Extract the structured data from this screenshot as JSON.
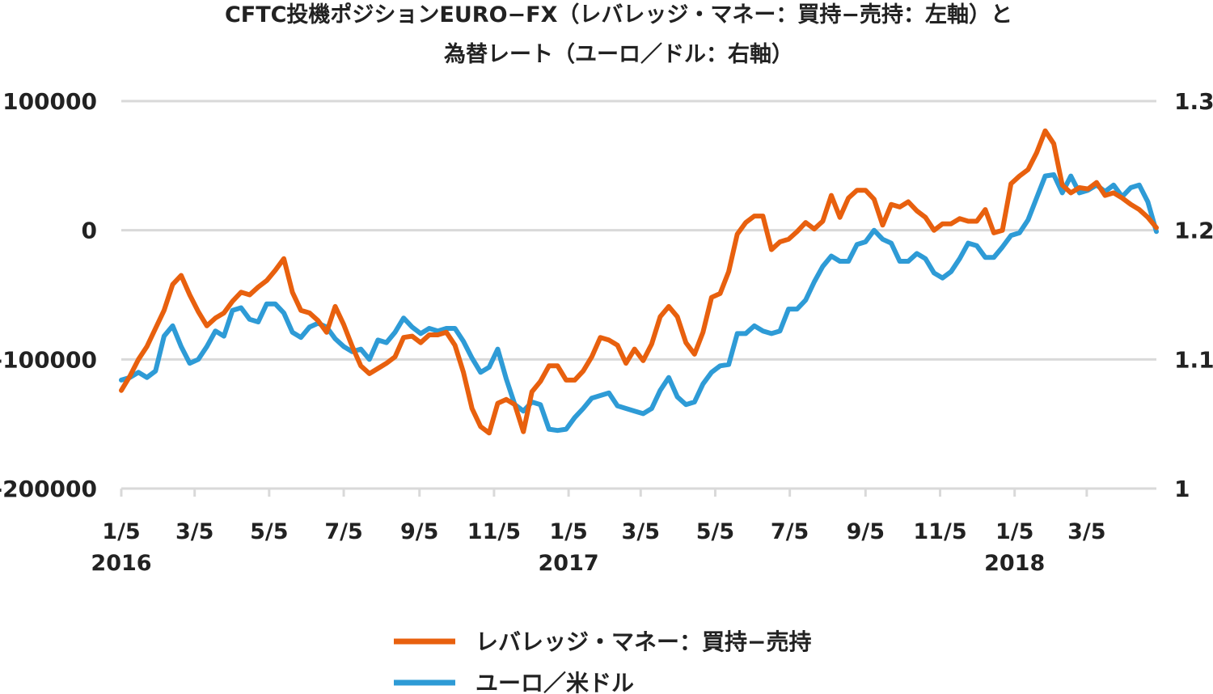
{
  "chart_data": {
    "type": "line",
    "title_lines": [
      "CFTC投機ポジションEURO−FX（レバレッジ・マネー：買持−売持：左軸）と",
      "為替レート（ユーロ／ドル：右軸）"
    ],
    "left_axis": {
      "ylim": [
        -200000,
        100000
      ],
      "ticks": [
        100000,
        0,
        -100000,
        -200000
      ],
      "tick_labels": [
        "100000",
        "0",
        "-100000",
        "-200000"
      ]
    },
    "right_axis": {
      "ylim": [
        1.0,
        1.3
      ],
      "ticks": [
        1.3,
        1.2,
        1.1,
        1.0
      ],
      "tick_labels": [
        "1.3",
        "1.2",
        "1.1",
        "1"
      ]
    },
    "x_range": [
      "2016-01-05",
      "2018-05-01"
    ],
    "x_ticks": [
      {
        "date": "2016-01-05",
        "label": "1/5",
        "year": "2016"
      },
      {
        "date": "2016-03-05",
        "label": "3/5",
        "year": ""
      },
      {
        "date": "2016-05-05",
        "label": "5/5",
        "year": ""
      },
      {
        "date": "2016-07-05",
        "label": "7/5",
        "year": ""
      },
      {
        "date": "2016-09-05",
        "label": "9/5",
        "year": ""
      },
      {
        "date": "2016-11-05",
        "label": "11/5",
        "year": ""
      },
      {
        "date": "2017-01-05",
        "label": "1/5",
        "year": "2017"
      },
      {
        "date": "2017-03-05",
        "label": "3/5",
        "year": ""
      },
      {
        "date": "2017-05-05",
        "label": "5/5",
        "year": ""
      },
      {
        "date": "2017-07-05",
        "label": "7/5",
        "year": ""
      },
      {
        "date": "2017-09-05",
        "label": "9/5",
        "year": ""
      },
      {
        "date": "2017-11-05",
        "label": "11/5",
        "year": ""
      },
      {
        "date": "2018-01-05",
        "label": "1/5",
        "year": "2018"
      },
      {
        "date": "2018-03-05",
        "label": "3/5",
        "year": ""
      }
    ],
    "grid": true,
    "legend_position": "bottom",
    "series": [
      {
        "name": "レバレッジ・マネー：買持−売持",
        "axis": "left",
        "color": "#e8600e",
        "points": [
          [
            "2016-01-05",
            -124000
          ],
          [
            "2016-01-12",
            -113000
          ],
          [
            "2016-01-19",
            -100000
          ],
          [
            "2016-01-26",
            -90000
          ],
          [
            "2016-02-02",
            -76000
          ],
          [
            "2016-02-09",
            -62000
          ],
          [
            "2016-02-16",
            -42000
          ],
          [
            "2016-02-23",
            -35000
          ],
          [
            "2016-03-01",
            -50000
          ],
          [
            "2016-03-08",
            -63000
          ],
          [
            "2016-03-15",
            -74000
          ],
          [
            "2016-03-22",
            -68000
          ],
          [
            "2016-03-29",
            -64000
          ],
          [
            "2016-04-05",
            -55000
          ],
          [
            "2016-04-12",
            -48000
          ],
          [
            "2016-04-19",
            -50000
          ],
          [
            "2016-04-26",
            -44000
          ],
          [
            "2016-05-03",
            -39000
          ],
          [
            "2016-05-10",
            -31000
          ],
          [
            "2016-05-17",
            -22000
          ],
          [
            "2016-05-24",
            -48000
          ],
          [
            "2016-05-31",
            -62000
          ],
          [
            "2016-06-07",
            -64000
          ],
          [
            "2016-06-14",
            -70000
          ],
          [
            "2016-06-21",
            -79000
          ],
          [
            "2016-06-28",
            -59000
          ],
          [
            "2016-07-05",
            -73000
          ],
          [
            "2016-07-12",
            -90000
          ],
          [
            "2016-07-19",
            -105000
          ],
          [
            "2016-07-26",
            -111000
          ],
          [
            "2016-08-02",
            -107000
          ],
          [
            "2016-08-09",
            -103000
          ],
          [
            "2016-08-16",
            -98000
          ],
          [
            "2016-08-23",
            -83000
          ],
          [
            "2016-08-30",
            -82000
          ],
          [
            "2016-09-06",
            -87000
          ],
          [
            "2016-09-13",
            -81000
          ],
          [
            "2016-09-20",
            -81000
          ],
          [
            "2016-09-27",
            -79000
          ],
          [
            "2016-10-04",
            -89000
          ],
          [
            "2016-10-11",
            -110000
          ],
          [
            "2016-10-18",
            -138000
          ],
          [
            "2016-10-25",
            -152000
          ],
          [
            "2016-11-01",
            -157000
          ],
          [
            "2016-11-08",
            -134000
          ],
          [
            "2016-11-15",
            -131000
          ],
          [
            "2016-11-22",
            -135000
          ],
          [
            "2016-11-29",
            -156000
          ],
          [
            "2016-12-06",
            -125000
          ],
          [
            "2016-12-13",
            -117000
          ],
          [
            "2016-12-20",
            -105000
          ],
          [
            "2016-12-27",
            -105000
          ],
          [
            "2017-01-03",
            -116000
          ],
          [
            "2017-01-10",
            -116000
          ],
          [
            "2017-01-17",
            -109000
          ],
          [
            "2017-01-24",
            -98000
          ],
          [
            "2017-01-31",
            -83000
          ],
          [
            "2017-02-07",
            -85000
          ],
          [
            "2017-02-14",
            -89000
          ],
          [
            "2017-02-21",
            -103000
          ],
          [
            "2017-02-28",
            -92000
          ],
          [
            "2017-03-07",
            -101000
          ],
          [
            "2017-03-14",
            -88000
          ],
          [
            "2017-03-21",
            -67000
          ],
          [
            "2017-03-28",
            -59000
          ],
          [
            "2017-04-04",
            -67000
          ],
          [
            "2017-04-11",
            -87000
          ],
          [
            "2017-04-18",
            -96000
          ],
          [
            "2017-04-25",
            -79000
          ],
          [
            "2017-05-02",
            -52000
          ],
          [
            "2017-05-09",
            -49000
          ],
          [
            "2017-05-16",
            -32000
          ],
          [
            "2017-05-23",
            -3000
          ],
          [
            "2017-05-30",
            6000
          ],
          [
            "2017-06-06",
            11000
          ],
          [
            "2017-06-13",
            11000
          ],
          [
            "2017-06-20",
            -15000
          ],
          [
            "2017-06-27",
            -9000
          ],
          [
            "2017-07-04",
            -7000
          ],
          [
            "2017-07-11",
            -1000
          ],
          [
            "2017-07-18",
            6000
          ],
          [
            "2017-07-25",
            1000
          ],
          [
            "2017-08-01",
            7000
          ],
          [
            "2017-08-08",
            27000
          ],
          [
            "2017-08-15",
            10000
          ],
          [
            "2017-08-22",
            25000
          ],
          [
            "2017-08-29",
            31000
          ],
          [
            "2017-09-05",
            31000
          ],
          [
            "2017-09-12",
            24000
          ],
          [
            "2017-09-19",
            4000
          ],
          [
            "2017-09-26",
            20000
          ],
          [
            "2017-10-03",
            18000
          ],
          [
            "2017-10-10",
            22000
          ],
          [
            "2017-10-17",
            15000
          ],
          [
            "2017-10-24",
            10000
          ],
          [
            "2017-10-31",
            0
          ],
          [
            "2017-11-07",
            5000
          ],
          [
            "2017-11-14",
            5000
          ],
          [
            "2017-11-21",
            9000
          ],
          [
            "2017-11-28",
            7000
          ],
          [
            "2017-12-05",
            7000
          ],
          [
            "2017-12-12",
            16000
          ],
          [
            "2017-12-19",
            -2000
          ],
          [
            "2017-12-26",
            0
          ],
          [
            "2018-01-02",
            36000
          ],
          [
            "2018-01-09",
            42000
          ],
          [
            "2018-01-16",
            47000
          ],
          [
            "2018-01-23",
            60000
          ],
          [
            "2018-01-30",
            77000
          ],
          [
            "2018-02-06",
            67000
          ],
          [
            "2018-02-13",
            35000
          ],
          [
            "2018-02-20",
            29000
          ],
          [
            "2018-02-27",
            33000
          ],
          [
            "2018-03-06",
            32000
          ],
          [
            "2018-03-13",
            37000
          ],
          [
            "2018-03-20",
            27000
          ],
          [
            "2018-03-27",
            29000
          ],
          [
            "2018-04-03",
            25000
          ],
          [
            "2018-04-10",
            20000
          ],
          [
            "2018-04-17",
            16000
          ],
          [
            "2018-04-24",
            10000
          ],
          [
            "2018-05-01",
            2000
          ]
        ]
      },
      {
        "name": "ユーロ／米ドル",
        "axis": "right",
        "color": "#2e9bd6",
        "points": [
          [
            "2016-01-05",
            1.084
          ],
          [
            "2016-01-12",
            1.086
          ],
          [
            "2016-01-19",
            1.09
          ],
          [
            "2016-01-26",
            1.086
          ],
          [
            "2016-02-02",
            1.091
          ],
          [
            "2016-02-09",
            1.118
          ],
          [
            "2016-02-16",
            1.126
          ],
          [
            "2016-02-23",
            1.11
          ],
          [
            "2016-03-01",
            1.097
          ],
          [
            "2016-03-08",
            1.1
          ],
          [
            "2016-03-15",
            1.11
          ],
          [
            "2016-03-22",
            1.122
          ],
          [
            "2016-03-29",
            1.118
          ],
          [
            "2016-04-05",
            1.138
          ],
          [
            "2016-04-12",
            1.14
          ],
          [
            "2016-04-19",
            1.131
          ],
          [
            "2016-04-26",
            1.129
          ],
          [
            "2016-05-03",
            1.143
          ],
          [
            "2016-05-10",
            1.143
          ],
          [
            "2016-05-17",
            1.136
          ],
          [
            "2016-05-24",
            1.121
          ],
          [
            "2016-05-31",
            1.117
          ],
          [
            "2016-06-07",
            1.125
          ],
          [
            "2016-06-14",
            1.128
          ],
          [
            "2016-06-21",
            1.125
          ],
          [
            "2016-06-28",
            1.116
          ],
          [
            "2016-07-05",
            1.11
          ],
          [
            "2016-07-12",
            1.106
          ],
          [
            "2016-07-19",
            1.108
          ],
          [
            "2016-07-26",
            1.1
          ],
          [
            "2016-08-02",
            1.115
          ],
          [
            "2016-08-09",
            1.113
          ],
          [
            "2016-08-16",
            1.121
          ],
          [
            "2016-08-23",
            1.132
          ],
          [
            "2016-08-30",
            1.125
          ],
          [
            "2016-09-06",
            1.12
          ],
          [
            "2016-09-13",
            1.124
          ],
          [
            "2016-09-20",
            1.122
          ],
          [
            "2016-09-27",
            1.124
          ],
          [
            "2016-10-04",
            1.124
          ],
          [
            "2016-10-11",
            1.114
          ],
          [
            "2016-10-18",
            1.101
          ],
          [
            "2016-10-25",
            1.09
          ],
          [
            "2016-11-01",
            1.094
          ],
          [
            "2016-11-08",
            1.108
          ],
          [
            "2016-11-15",
            1.085
          ],
          [
            "2016-11-22",
            1.065
          ],
          [
            "2016-11-29",
            1.06
          ],
          [
            "2016-12-06",
            1.067
          ],
          [
            "2016-12-13",
            1.065
          ],
          [
            "2016-12-20",
            1.046
          ],
          [
            "2016-12-27",
            1.045
          ],
          [
            "2017-01-03",
            1.046
          ],
          [
            "2017-01-10",
            1.055
          ],
          [
            "2017-01-17",
            1.062
          ],
          [
            "2017-01-24",
            1.07
          ],
          [
            "2017-01-31",
            1.072
          ],
          [
            "2017-02-07",
            1.074
          ],
          [
            "2017-02-14",
            1.064
          ],
          [
            "2017-02-21",
            1.062
          ],
          [
            "2017-02-28",
            1.06
          ],
          [
            "2017-03-07",
            1.058
          ],
          [
            "2017-03-14",
            1.062
          ],
          [
            "2017-03-21",
            1.076
          ],
          [
            "2017-03-28",
            1.086
          ],
          [
            "2017-04-04",
            1.071
          ],
          [
            "2017-04-11",
            1.065
          ],
          [
            "2017-04-18",
            1.067
          ],
          [
            "2017-04-25",
            1.081
          ],
          [
            "2017-05-02",
            1.09
          ],
          [
            "2017-05-09",
            1.095
          ],
          [
            "2017-05-16",
            1.096
          ],
          [
            "2017-05-23",
            1.12
          ],
          [
            "2017-05-30",
            1.12
          ],
          [
            "2017-06-06",
            1.126
          ],
          [
            "2017-06-13",
            1.122
          ],
          [
            "2017-06-20",
            1.12
          ],
          [
            "2017-06-27",
            1.122
          ],
          [
            "2017-07-04",
            1.139
          ],
          [
            "2017-07-11",
            1.139
          ],
          [
            "2017-07-18",
            1.146
          ],
          [
            "2017-07-25",
            1.16
          ],
          [
            "2017-08-01",
            1.172
          ],
          [
            "2017-08-08",
            1.18
          ],
          [
            "2017-08-15",
            1.176
          ],
          [
            "2017-08-22",
            1.176
          ],
          [
            "2017-08-29",
            1.189
          ],
          [
            "2017-09-05",
            1.191
          ],
          [
            "2017-09-12",
            1.2
          ],
          [
            "2017-09-19",
            1.193
          ],
          [
            "2017-09-26",
            1.19
          ],
          [
            "2017-10-03",
            1.176
          ],
          [
            "2017-10-10",
            1.176
          ],
          [
            "2017-10-17",
            1.182
          ],
          [
            "2017-10-24",
            1.178
          ],
          [
            "2017-10-31",
            1.167
          ],
          [
            "2017-11-07",
            1.163
          ],
          [
            "2017-11-14",
            1.168
          ],
          [
            "2017-11-21",
            1.178
          ],
          [
            "2017-11-28",
            1.19
          ],
          [
            "2017-12-05",
            1.188
          ],
          [
            "2017-12-12",
            1.179
          ],
          [
            "2017-12-19",
            1.179
          ],
          [
            "2017-12-26",
            1.187
          ],
          [
            "2018-01-02",
            1.196
          ],
          [
            "2018-01-09",
            1.198
          ],
          [
            "2018-01-16",
            1.208
          ],
          [
            "2018-01-23",
            1.225
          ],
          [
            "2018-01-30",
            1.242
          ],
          [
            "2018-02-06",
            1.243
          ],
          [
            "2018-02-13",
            1.229
          ],
          [
            "2018-02-20",
            1.242
          ],
          [
            "2018-02-27",
            1.229
          ],
          [
            "2018-03-06",
            1.231
          ],
          [
            "2018-03-13",
            1.235
          ],
          [
            "2018-03-20",
            1.23
          ],
          [
            "2018-03-27",
            1.235
          ],
          [
            "2018-04-03",
            1.226
          ],
          [
            "2018-04-10",
            1.233
          ],
          [
            "2018-04-17",
            1.235
          ],
          [
            "2018-04-24",
            1.222
          ],
          [
            "2018-05-01",
            1.199
          ]
        ]
      }
    ]
  }
}
